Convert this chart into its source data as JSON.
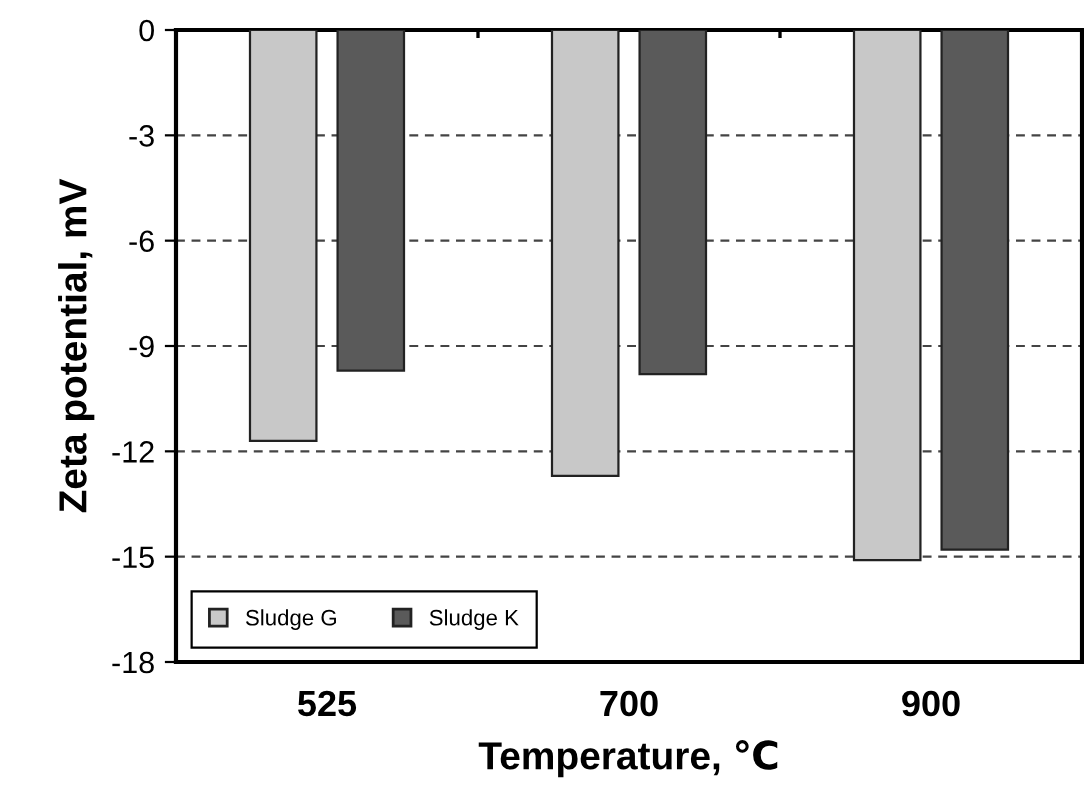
{
  "chart_data": {
    "type": "bar",
    "xlabel": "Temperature, ℃",
    "ylabel": "Zeta potential, mV",
    "categories": [
      "525",
      "700",
      "900"
    ],
    "series": [
      {
        "name": "Sludge G",
        "color": "#c8c8c8",
        "values": [
          -11.7,
          -12.7,
          -15.1
        ]
      },
      {
        "name": "Sludge K",
        "color": "#5a5a5a",
        "values": [
          -9.7,
          -9.8,
          -14.8
        ]
      }
    ],
    "ylim": [
      -18,
      0
    ],
    "yticks": [
      0,
      -3,
      -6,
      -9,
      -12,
      -15,
      -18
    ],
    "grid": "y",
    "legend": "bottom left"
  }
}
